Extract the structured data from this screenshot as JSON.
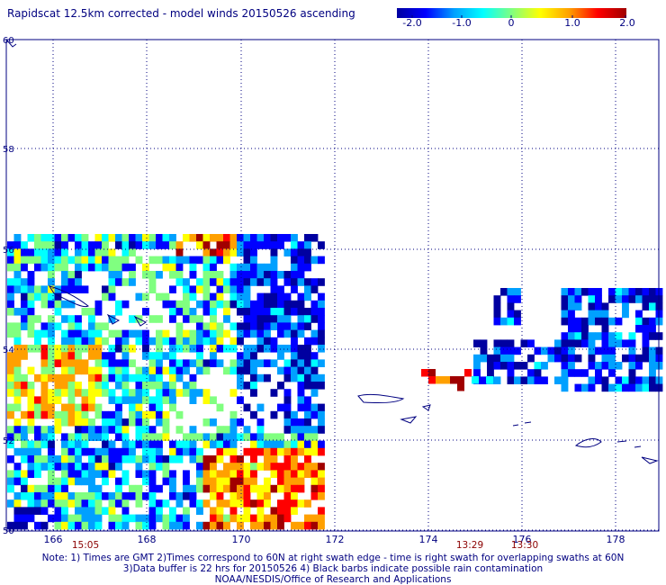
{
  "title": "Rapidscat 12.5km corrected - model winds 20150526 ascending",
  "colorbar": {
    "ticks": [
      "-2.0",
      "-1.0",
      "0",
      "1.0",
      "2.0"
    ],
    "colors": [
      "#0000a0",
      "#0000ff",
      "#00a0ff",
      "#00ffff",
      "#80ff80",
      "#ffff00",
      "#ffa000",
      "#ff0000",
      "#a00000"
    ]
  },
  "map": {
    "lon_ticks": [
      "166",
      "168",
      "170",
      "172",
      "174",
      "176",
      "178"
    ],
    "lat_ticks": [
      "60",
      "58",
      "56",
      "54",
      "52",
      "50"
    ],
    "time_labels": [
      {
        "text": "15:05",
        "lon": 165.8
      },
      {
        "text": "13:29",
        "lon": 174.9
      },
      {
        "text": "13:30",
        "lon": 176.1
      }
    ]
  },
  "notes": [
    "Note: 1) Times are GMT 2)Times correspond to 60N at right swath edge - time is right swath for overlapping swaths at 60N",
    "3)Data buffer is 22 hrs for 20150526 4) Black barbs indicate possible rain contamination",
    "NOAA/NESDIS/Office of Research and Applications"
  ]
}
